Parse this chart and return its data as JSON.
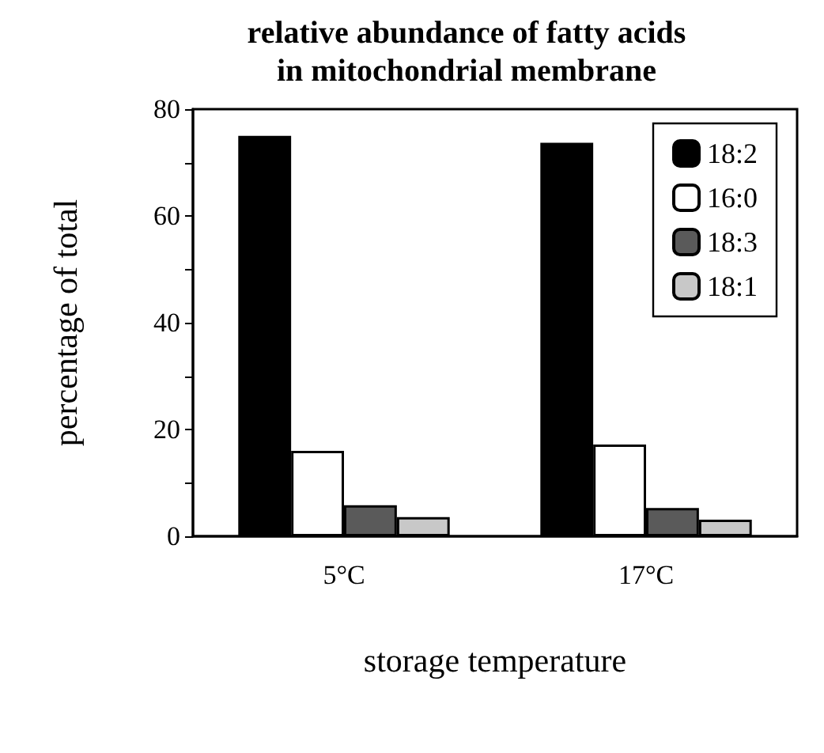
{
  "chart_data": {
    "type": "bar",
    "title": "relative abundance of fatty acids\nin mitochondrial membrane",
    "xlabel": "storage temperature",
    "ylabel": "percentage of total",
    "categories": [
      "5°C",
      "17°C"
    ],
    "series": [
      {
        "name": "18:2",
        "color": "#000000",
        "values": [
          75,
          73.7
        ]
      },
      {
        "name": "16:0",
        "color": "#ffffff",
        "values": [
          16,
          17.2
        ]
      },
      {
        "name": "18:3",
        "color": "#5a5a5a",
        "values": [
          5.8,
          5.3
        ]
      },
      {
        "name": "18:1",
        "color": "#c8c8c8",
        "values": [
          3.6,
          3.1
        ]
      }
    ],
    "ylim": [
      0,
      80
    ],
    "yticks": [
      0,
      {
        "value": 10,
        "label": null
      },
      20,
      {
        "value": 30,
        "label": null
      },
      40,
      {
        "value": 50,
        "label": null
      },
      60,
      {
        "value": 70,
        "label": null
      },
      80
    ],
    "grid": false,
    "legend": "top right"
  }
}
